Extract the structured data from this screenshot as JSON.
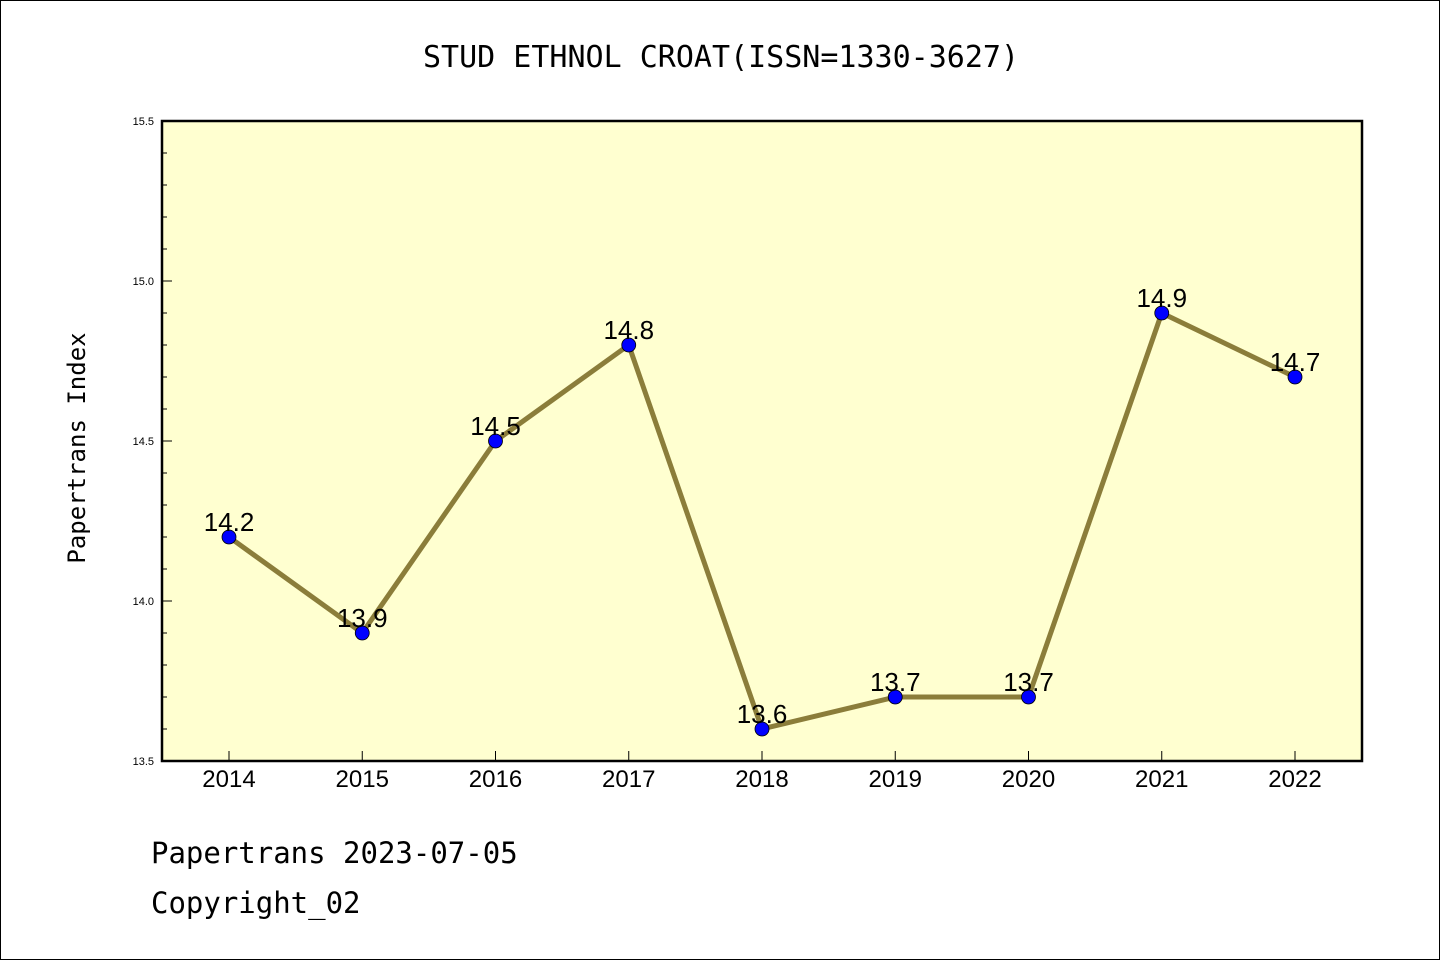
{
  "chart_data": {
    "type": "line",
    "title": "STUD ETHNOL CROAT(ISSN=1330-3627)",
    "xlabel": "",
    "ylabel": "Papertrans Index",
    "categories": [
      "2014",
      "2015",
      "2016",
      "2017",
      "2018",
      "2019",
      "2020",
      "2021",
      "2022"
    ],
    "series": [
      {
        "values": [
          14.2,
          13.9,
          14.5,
          14.8,
          13.6,
          13.7,
          13.7,
          14.9,
          14.7
        ],
        "data_labels": [
          "14.2",
          "13.9",
          "14.5",
          "14.8",
          "13.6",
          "13.7",
          "13.7",
          "14.9",
          "14.7"
        ],
        "line_color": "#8b7d3a",
        "marker_color": "#0000ff"
      }
    ],
    "ylim": [
      13.5,
      15.5
    ],
    "yticks": [
      13.5,
      14.0,
      14.5,
      15.0,
      15.5
    ],
    "ytick_labels": [
      "13.5",
      "14.0",
      "14.5",
      "15.0",
      "15.5"
    ],
    "grid": false,
    "plot_background": "#ffffd0"
  },
  "footer": {
    "line1": "Papertrans 2023-07-05",
    "line2": "Copyright_02"
  }
}
